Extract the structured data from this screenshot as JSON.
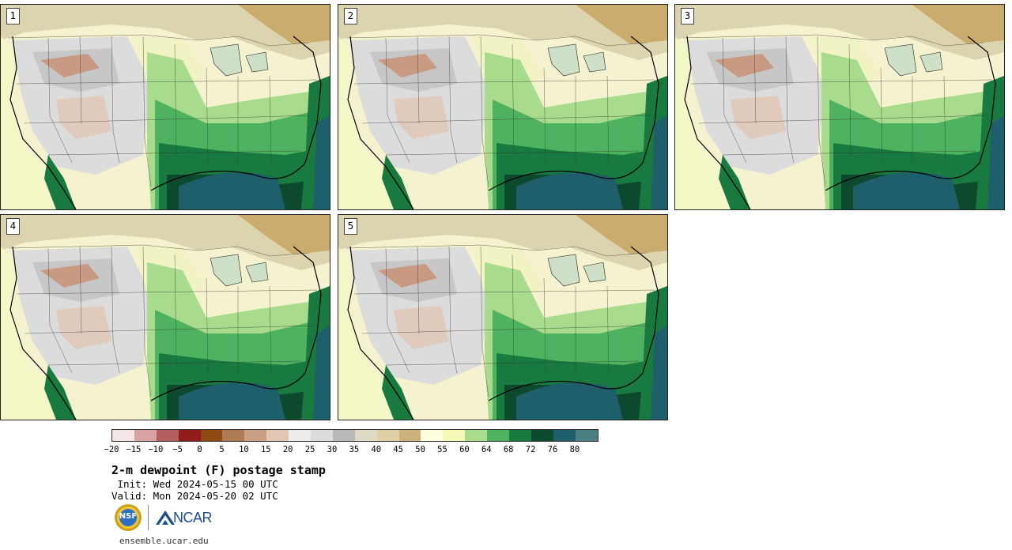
{
  "panels": [
    {
      "label": "1"
    },
    {
      "label": "2"
    },
    {
      "label": "3"
    },
    {
      "label": "4"
    },
    {
      "label": "5"
    }
  ],
  "colorbar": {
    "colors": [
      "#f5e6e6",
      "#d9a3a3",
      "#b25e5e",
      "#8f1b1b",
      "#8f4a12",
      "#b07a55",
      "#c9a084",
      "#e3c7b5",
      "#ececec",
      "#dcdcdc",
      "#b9b9b9",
      "#dfdac6",
      "#dfcfa4",
      "#cbb27a",
      "#fdfde0",
      "#f6f8b5",
      "#a8dc8c",
      "#4fb260",
      "#187a3f",
      "#0d4a2d",
      "#1f5e6b",
      "#4a7f82"
    ],
    "ticks": [
      "−20",
      "−15",
      "−10",
      "−5",
      "0",
      "5",
      "10",
      "15",
      "20",
      "25",
      "30",
      "35",
      "40",
      "45",
      "50",
      "55",
      "60",
      "64",
      "68",
      "72",
      "76",
      "80"
    ]
  },
  "title": "2-m dewpoint (F) postage stamp",
  "init": " Init: Wed 2024-05-15 00 UTC",
  "valid": "Valid: Mon 2024-05-20 02 UTC",
  "logos": {
    "nsf": "NSF",
    "ncar": "NCAR"
  },
  "site": "ensemble.ucar.edu"
}
